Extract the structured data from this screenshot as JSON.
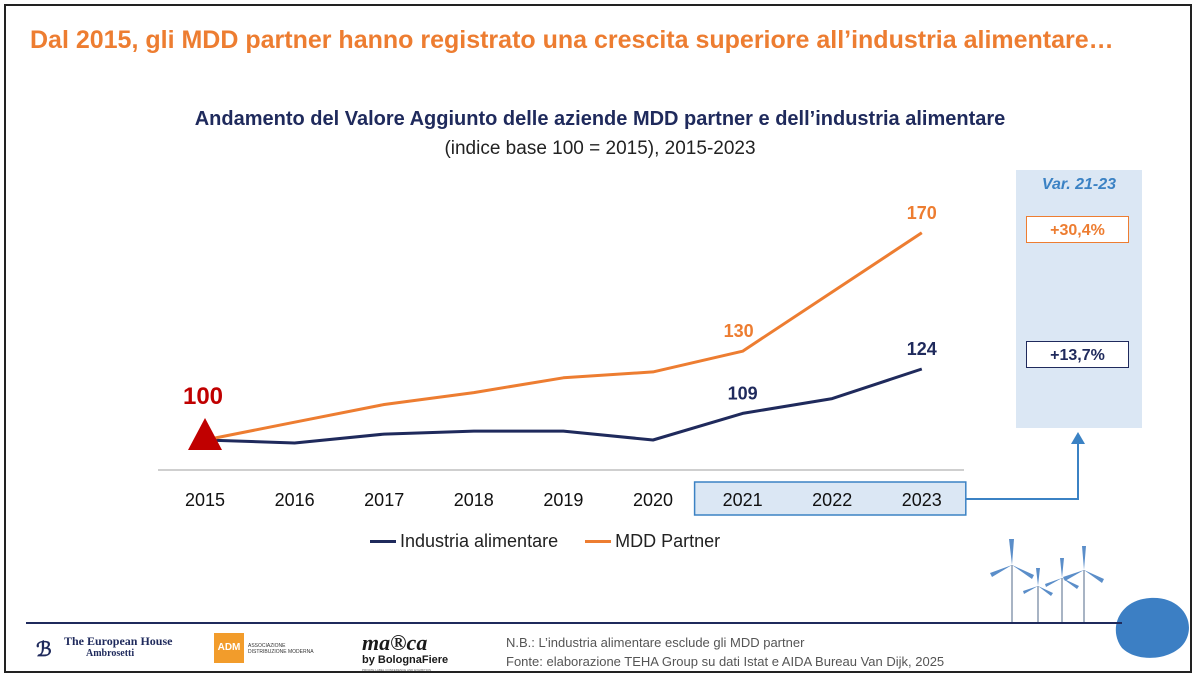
{
  "headline": "Dal 2015, gli MDD partner hanno registrato una crescita superiore all’industria alimentare…",
  "chart_data": {
    "type": "line",
    "title": "Andamento del Valore Aggiunto delle aziende MDD partner e dell’industria alimentare",
    "subtitle": "(indice base 100 = 2015), 2015-2023",
    "categories": [
      "2015",
      "2016",
      "2017",
      "2018",
      "2019",
      "2020",
      "2021",
      "2022",
      "2023"
    ],
    "series": [
      {
        "name": "Industria alimentare",
        "color": "#1F2A5C",
        "values": [
          100,
          99,
          102,
          103,
          103,
          100,
          109,
          114,
          124
        ]
      },
      {
        "name": "MDD Partner",
        "color": "#ED7D31",
        "values": [
          100,
          106,
          112,
          116,
          121,
          123,
          130,
          150,
          170
        ]
      }
    ],
    "data_labels": [
      {
        "series": 1,
        "index": 0,
        "text": "100"
      },
      {
        "series": 1,
        "index": 6,
        "text": "130"
      },
      {
        "series": 1,
        "index": 8,
        "text": "170"
      },
      {
        "series": 0,
        "index": 6,
        "text": "109"
      },
      {
        "series": 0,
        "index": 8,
        "text": "124"
      }
    ],
    "ylim": [
      70,
      180
    ],
    "grid": false,
    "legend": "bottom",
    "highlight_categories": [
      "2021",
      "2022",
      "2023"
    ],
    "highlight_color": "#3B82C4",
    "base_marker_color": "#C00000"
  },
  "variation": {
    "title": "Var. 21-23",
    "mdd": "+30,4%",
    "industria": "+13,7%"
  },
  "legend": {
    "industria": "Industria alimentare",
    "mdd": "MDD Partner"
  },
  "logos": {
    "teh_line1": "The European House",
    "teh_line2": "Ambrosetti",
    "adm_abbr": "ADM",
    "adm_text_1": "ASSOCIAZIONE",
    "adm_text_2": "DISTRIBUZIONE MODERNA",
    "marca_name": "ma®ca",
    "marca_by": "by BolognaFiere",
    "marca_tag": "PRIVATE LABEL CONFERENCE AND EXHIBITION"
  },
  "notes": {
    "nb": "N.B.: L’industria alimentare esclude gli MDD partner",
    "source": "Fonte: elaborazione TEHA Group su dati Istat e AIDA Bureau Van Dijk, 2025"
  }
}
